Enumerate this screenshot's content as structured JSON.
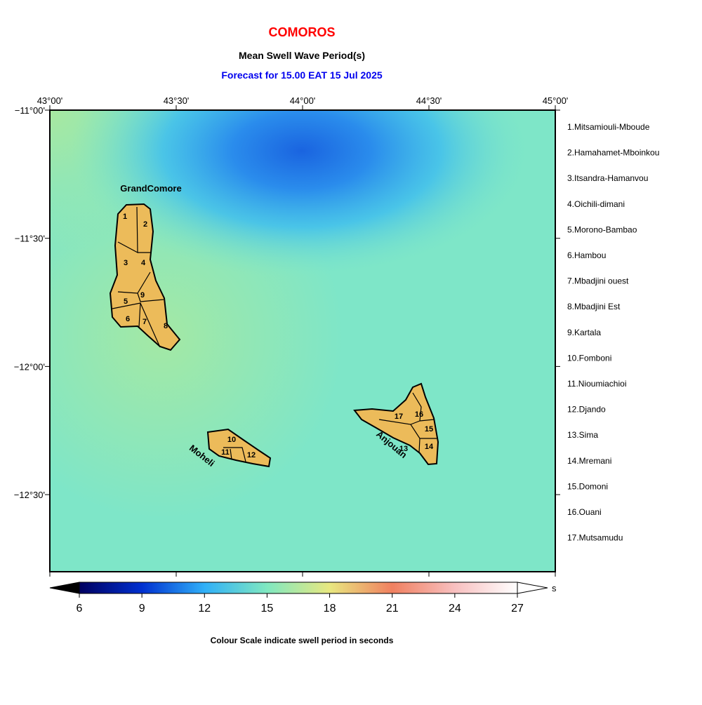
{
  "header": {
    "country": "COMOROS",
    "title": "Mean Swell Wave Period(s)",
    "forecast": "Forecast for  15.00 EAT 15 Jul 2025"
  },
  "map": {
    "lon_labels": [
      "43°00'",
      "43°30'",
      "44°00'",
      "44°30'",
      "45°00'"
    ],
    "lat_labels": [
      "−11°00'",
      "−11°30'",
      "−12°00'",
      "−12°30'"
    ],
    "islands": [
      "GrandComore",
      "Moheli",
      "Anjouan"
    ],
    "district_labels": [
      "1",
      "2",
      "3",
      "4",
      "5",
      "6",
      "7",
      "8",
      "9",
      "10",
      "11",
      "12",
      "13",
      "14",
      "15",
      "16",
      "17"
    ]
  },
  "legend": {
    "regions": [
      "1.Mitsamiouli-Mboude",
      "2.Hamahamet-Mboinkou",
      "3.Itsandra-Hamanvou",
      "4.Oichili-dimani",
      "5.Morono-Bambao",
      "6.Hambou",
      "7.Mbadjini ouest",
      "8.Mbadjini Est",
      "9.Kartala",
      "10.Fomboni",
      "11.Nioumiachioi",
      "12.Djando",
      "13.Sima",
      "14.Mremani",
      "15.Domoni",
      "16.Ouani",
      "17.Mutsamudu"
    ]
  },
  "colorbar": {
    "ticks": [
      6,
      9,
      12,
      15,
      18,
      21,
      24,
      27
    ],
    "unit": "s",
    "caption": "Colour Scale indicate swell period in seconds"
  }
}
